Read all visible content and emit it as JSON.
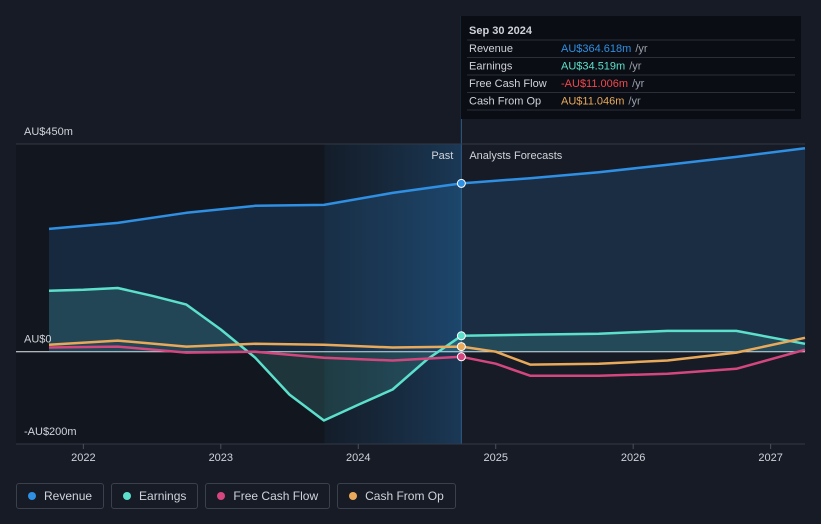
{
  "chart_data": {
    "type": "line",
    "xlim": [
      2021.51,
      2027.25
    ],
    "xticks": [
      2022,
      2023,
      2024,
      2025,
      2026,
      2027
    ],
    "ylim": [
      -200,
      450
    ],
    "yticks": [
      {
        "value": -200,
        "label": "-AU$200m"
      },
      {
        "value": 0,
        "label": "AU$0"
      },
      {
        "value": 450,
        "label": "AU$450m"
      }
    ],
    "highlight_x": 2024.75,
    "past_label": "Past",
    "forecast_label": "Analysts Forecasts",
    "series": [
      {
        "name": "Revenue",
        "color": "#2f8fe3",
        "fill": true,
        "x": [
          2021.75,
          2022.25,
          2022.75,
          2023.25,
          2023.75,
          2024.25,
          2024.75,
          2025.25,
          2025.75,
          2026.25,
          2026.75,
          2027.25
        ],
        "values": [
          266,
          279,
          301,
          316,
          318,
          344,
          364.618,
          376,
          389,
          405,
          422,
          441
        ]
      },
      {
        "name": "Earnings",
        "color": "#5ce0cc",
        "fill": true,
        "x": [
          2021.75,
          2022.0,
          2022.25,
          2022.5,
          2022.75,
          2023.0,
          2023.25,
          2023.5,
          2023.75,
          2024.0,
          2024.25,
          2024.5,
          2024.75,
          2025.25,
          2025.75,
          2026.25,
          2026.75,
          2027.25
        ],
        "values": [
          132,
          134,
          138,
          121,
          102,
          48,
          -13,
          -93,
          -149,
          -115,
          -82,
          -17,
          34.519,
          37,
          39,
          45,
          45,
          17
        ]
      },
      {
        "name": "Free Cash Flow",
        "color": "#d4477e",
        "fill": false,
        "x": [
          2021.75,
          2022.25,
          2022.75,
          2023.25,
          2023.75,
          2024.25,
          2024.75,
          2025.0,
          2025.25,
          2025.75,
          2026.25,
          2026.75,
          2027.25
        ],
        "values": [
          9,
          11,
          -2,
          0,
          -13,
          -19,
          -11.006,
          -26,
          -52,
          -52,
          -48,
          -37,
          4
        ]
      },
      {
        "name": "Cash From Op",
        "color": "#e8a95a",
        "fill": false,
        "x": [
          2021.75,
          2022.25,
          2022.75,
          2023.25,
          2023.75,
          2024.25,
          2024.75,
          2025.0,
          2025.25,
          2025.75,
          2026.25,
          2026.75,
          2027.25
        ],
        "values": [
          15,
          24,
          11,
          17,
          15,
          9,
          11.046,
          0,
          -28,
          -26,
          -19,
          -2,
          30
        ]
      }
    ],
    "tooltip": {
      "date": "Sep 30 2024",
      "rows": [
        {
          "label": "Revenue",
          "value_label": "AU$364.618m",
          "unit": "/yr",
          "color": "#2f8fe3"
        },
        {
          "label": "Earnings",
          "value_label": "AU$34.519m",
          "unit": "/yr",
          "color": "#5ce0cc"
        },
        {
          "label": "Free Cash Flow",
          "value_label": "-AU$11.006m",
          "unit": "/yr",
          "color": "#f0484f"
        },
        {
          "label": "Cash From Op",
          "value_label": "AU$11.046m",
          "unit": "/yr",
          "color": "#e8a95a"
        }
      ]
    }
  }
}
